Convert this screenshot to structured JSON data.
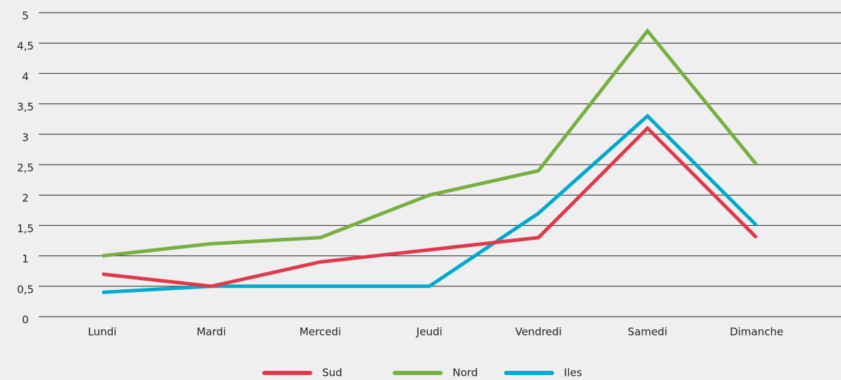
{
  "chart_data": {
    "type": "line",
    "categories": [
      "Lundi",
      "Mardi",
      "Mercedi",
      "Jeudi",
      "Vendredi",
      "Samedi",
      "Dimanche"
    ],
    "series": [
      {
        "name": "Sud",
        "color": "#e03a4a",
        "values": [
          0.7,
          0.5,
          0.9,
          1.1,
          1.3,
          3.1,
          1.3
        ]
      },
      {
        "name": "Nord",
        "color": "#77b041",
        "values": [
          1.0,
          1.2,
          1.3,
          2.0,
          2.4,
          4.7,
          2.5
        ]
      },
      {
        "name": "Iles",
        "color": "#00a9ce",
        "values": [
          0.4,
          0.5,
          0.5,
          0.5,
          1.7,
          3.3,
          1.5
        ]
      }
    ],
    "ylim": [
      0,
      5
    ],
    "yticks": [
      0,
      {
        "value": 0.5,
        "label": "0,5"
      },
      1,
      {
        "value": 1.5,
        "label": "1,5"
      },
      2,
      {
        "value": 2.5,
        "label": "2,5"
      },
      3,
      {
        "value": 3.5,
        "label": "3,5"
      },
      4,
      {
        "value": 4.5,
        "label": "4,5"
      },
      5
    ],
    "grid": true,
    "legend": "bottom"
  }
}
